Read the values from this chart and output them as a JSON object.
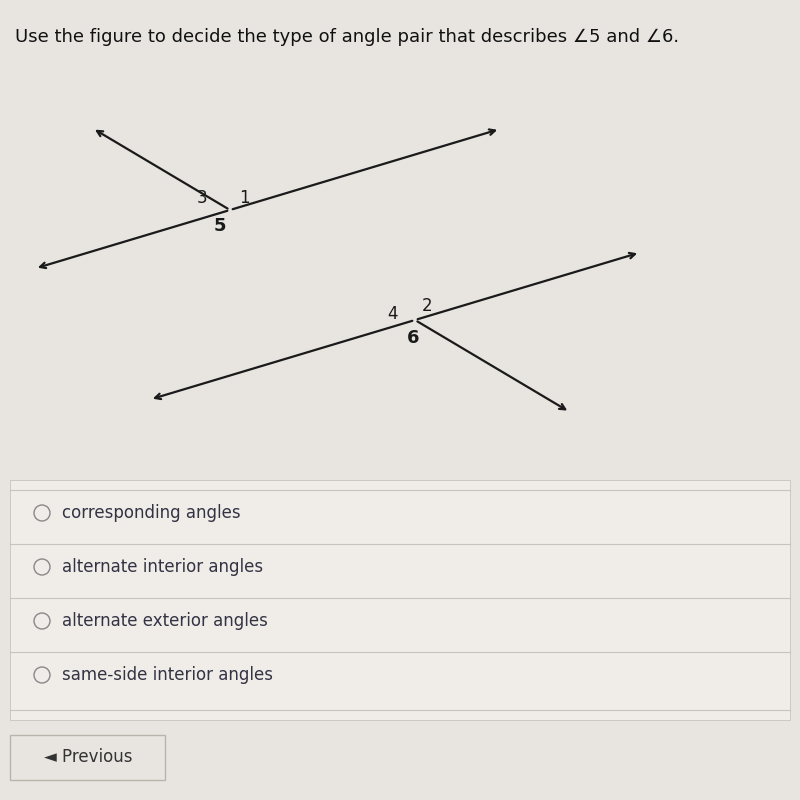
{
  "bg_color": "#e8e5e0",
  "title": "Use the figure to decide the type of angle pair that describes ∠5 and ∠6.",
  "options": [
    "corresponding angles",
    "alternate interior angles",
    "alternate exterior angles",
    "same-side interior angles"
  ],
  "upper_ix": 0.28,
  "upper_iy": 0.73,
  "lower_ix": 0.52,
  "lower_iy": 0.52,
  "parallel_slope": 0.18,
  "transversal_slope": -0.72,
  "line_color": "#1a1a1a",
  "label_color": "#1a1a1a",
  "option_color": "#333344",
  "sep_color": "#c8c4bc",
  "radio_color": "#666666"
}
